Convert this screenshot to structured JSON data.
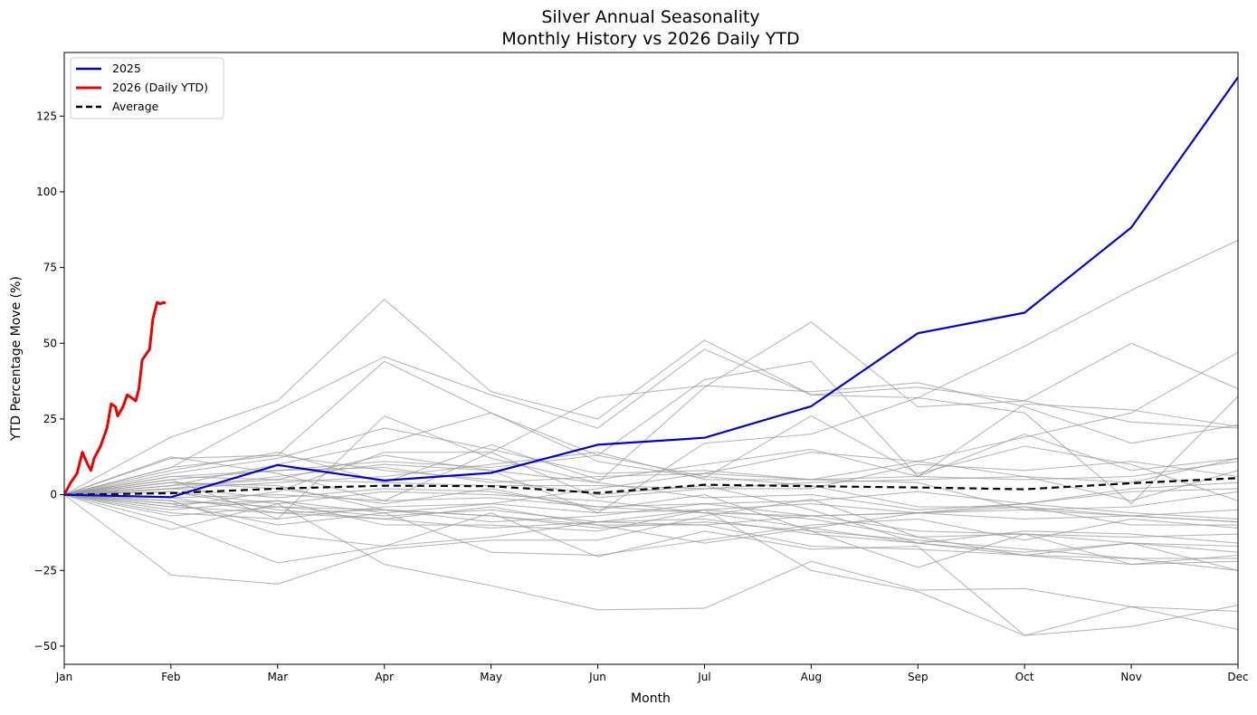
{
  "chart_data": {
    "type": "line",
    "title": "Silver Annual Seasonality",
    "subtitle": "Monthly History vs 2026 Daily YTD",
    "xlabel": "Month",
    "ylabel": "YTD Percentage Move (%)",
    "categories": [
      "Jan",
      "Feb",
      "Mar",
      "Apr",
      "May",
      "Jun",
      "Jul",
      "Aug",
      "Sep",
      "Oct",
      "Nov",
      "Dec"
    ],
    "xlim": [
      0,
      11
    ],
    "ylim": [
      -56,
      146
    ],
    "yticks": [
      -50,
      -25,
      0,
      25,
      50,
      75,
      100,
      125
    ],
    "legend": {
      "position": "top-left",
      "entries": [
        {
          "label": "2025",
          "color": "#0000dd",
          "style": "solid"
        },
        {
          "label": "2026 (Daily YTD)",
          "color": "#ee0000",
          "style": "solid"
        },
        {
          "label": "Average",
          "color": "#000000",
          "style": "dashed"
        }
      ]
    },
    "series": [
      {
        "name": "2025",
        "color": "#0000dd",
        "x": [
          0,
          1,
          2,
          3,
          4,
          5,
          6,
          7,
          8,
          9,
          10,
          11
        ],
        "values": [
          0,
          -0.8,
          9.8,
          4.7,
          7.2,
          16.5,
          18.8,
          29.2,
          53.3,
          60.1,
          88.2,
          137.8
        ]
      },
      {
        "name": "2026 (Daily YTD)",
        "color": "#ee0000",
        "x": [
          0,
          0.06,
          0.12,
          0.17,
          0.22,
          0.25,
          0.28,
          0.34,
          0.4,
          0.44,
          0.48,
          0.5,
          0.55,
          0.59,
          0.63,
          0.67,
          0.7,
          0.73,
          0.78,
          0.8,
          0.83,
          0.87,
          0.9,
          0.93,
          0.95
        ],
        "values": [
          0,
          4,
          7,
          14,
          10,
          8,
          12,
          16,
          22,
          30,
          29,
          26,
          29,
          33,
          32,
          31,
          35,
          44.5,
          47,
          48,
          58,
          63.5,
          63,
          63.5,
          63.2
        ]
      },
      {
        "name": "Average",
        "color": "#000000",
        "dashed": true,
        "x": [
          0,
          1,
          2,
          3,
          4,
          5,
          6,
          7,
          8,
          9,
          10,
          11
        ],
        "values": [
          0,
          0.5,
          2.0,
          3.0,
          2.8,
          0.6,
          3.3,
          2.8,
          2.4,
          1.8,
          3.8,
          5.5
        ]
      }
    ],
    "history": [
      [
        0,
        19,
        31,
        64.5,
        34,
        25,
        51,
        33,
        32,
        49,
        67.5,
        84
      ],
      [
        0,
        9,
        28,
        45.5,
        33,
        22,
        48,
        33,
        35.5,
        31,
        50,
        35
      ],
      [
        0,
        12,
        13,
        44,
        27,
        13,
        38,
        44,
        6,
        30,
        28,
        22.5
      ],
      [
        0,
        -26.5,
        -29.5,
        -18,
        -15,
        -15,
        -7,
        -1.5,
        -14,
        -13,
        -23,
        -20
      ],
      [
        0,
        -11.5,
        -3,
        -23,
        -30,
        -38,
        -37.5,
        -22,
        -31.5,
        -31,
        -37,
        -38.5
      ],
      [
        0,
        -2,
        -13,
        -17,
        -14,
        -9,
        -5,
        -8,
        -14,
        -20,
        -21,
        -21
      ],
      [
        0,
        5,
        -8,
        26,
        12,
        4,
        35.5,
        57,
        29,
        31,
        24,
        22
      ],
      [
        0,
        8,
        14,
        4,
        16.5,
        5,
        10,
        15,
        6,
        20,
        8,
        12
      ],
      [
        0,
        -9,
        -22.5,
        -17,
        -6,
        -20.5,
        -12,
        -18,
        -17,
        -46.5,
        -43.5,
        -36.5
      ],
      [
        0,
        3,
        10,
        17,
        27,
        11,
        5.5,
        26,
        7,
        16,
        10,
        -2
      ],
      [
        0,
        -5,
        -2,
        -10,
        -10,
        -12,
        -5,
        -25,
        -32,
        -46.5,
        -37,
        -44.5
      ],
      [
        0,
        4,
        2,
        -3,
        2,
        -5,
        0,
        -12,
        -24,
        -13,
        -16,
        -25
      ],
      [
        0,
        6,
        5,
        13,
        8,
        -6,
        17,
        20,
        32,
        27,
        -3,
        32.5
      ],
      [
        0,
        -3,
        -10,
        -6,
        -19,
        -20,
        -15,
        -10,
        -8,
        -15,
        -8,
        -11
      ],
      [
        0,
        1,
        -5,
        -8,
        -4,
        -10,
        -16,
        -11,
        -6,
        -3,
        2,
        4
      ],
      [
        0,
        12.5,
        7,
        -2,
        14,
        32,
        36,
        34,
        37,
        29,
        17,
        23
      ],
      [
        0,
        -4,
        1,
        14,
        14,
        -1,
        2,
        2,
        10,
        8,
        11,
        6
      ],
      [
        0,
        -1,
        -6,
        -5,
        -7,
        -11,
        -9,
        -12,
        -15,
        -18,
        -21,
        -25
      ],
      [
        0,
        2,
        -1,
        2,
        1,
        -4,
        -6,
        -7,
        -6,
        -5,
        -7,
        -9
      ],
      [
        0,
        7,
        12,
        22,
        15,
        7,
        8,
        5,
        4,
        -5,
        -4,
        1
      ],
      [
        0,
        -7,
        -4,
        -5,
        -9,
        -7,
        -3,
        -2,
        1,
        -3,
        -6,
        -8
      ],
      [
        0,
        3,
        5,
        4,
        3,
        3,
        2,
        4,
        5,
        6,
        4,
        12
      ],
      [
        0,
        -2,
        -4,
        -7,
        -5,
        -9,
        -10,
        -7,
        -12,
        -13,
        -14,
        -13
      ],
      [
        0,
        5,
        8,
        9,
        4,
        6,
        7,
        5,
        11,
        6,
        -2,
        8
      ],
      [
        0,
        -6,
        -8,
        -4,
        -3,
        -6,
        -5,
        -3,
        -6,
        -4,
        -10,
        -10
      ],
      [
        0,
        2,
        6,
        10,
        8,
        4,
        -1,
        0,
        -5,
        -3,
        1,
        2
      ],
      [
        0,
        9,
        13,
        8,
        5,
        0,
        3,
        -5,
        -16,
        -12,
        -13,
        -16
      ],
      [
        0,
        -3,
        -2,
        -6,
        -3,
        2,
        7,
        14,
        11,
        19,
        27,
        47
      ],
      [
        0,
        4,
        3,
        -5,
        -7,
        -10,
        -10,
        -17,
        -18,
        -20,
        -16,
        -19
      ],
      [
        0,
        6,
        8,
        11,
        9,
        13,
        6,
        3,
        -4,
        -4,
        -7,
        -5
      ],
      [
        0,
        1,
        -3,
        1,
        0,
        -2,
        -6,
        -11,
        -16,
        -19,
        -16,
        -17
      ],
      [
        0,
        -4,
        -6,
        -8,
        -11,
        -9,
        -8,
        -13,
        -16,
        -20,
        -23,
        -22
      ],
      [
        0,
        2,
        4,
        6,
        10,
        14,
        5,
        5,
        6,
        5,
        6,
        11
      ],
      [
        0,
        -1,
        0,
        -2,
        -1,
        -4,
        -3,
        -7,
        -6,
        -8,
        -7,
        -9
      ]
    ]
  }
}
